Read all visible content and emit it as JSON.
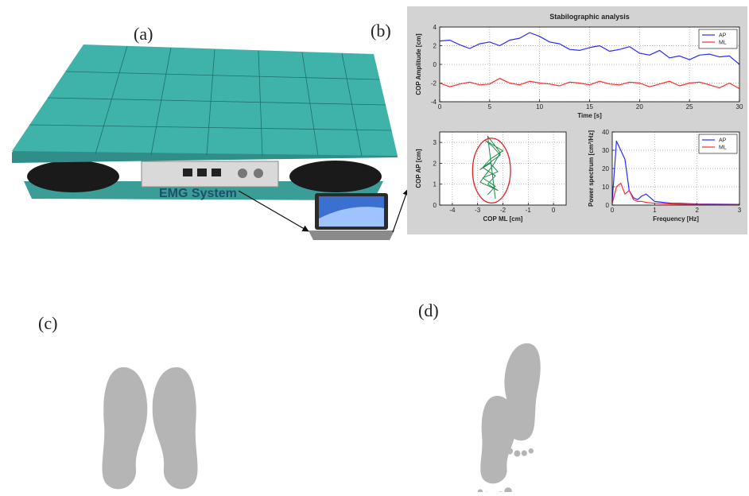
{
  "panel_labels": [
    "(a)",
    "(b)",
    "(c)",
    "(d)"
  ],
  "platform_brand": "EMG System",
  "chart_data": [
    {
      "type": "line",
      "title": "Stabilographic analysis",
      "x_label": "Time [s]",
      "y_label": "COP Amplitude [cm]",
      "x": [
        0,
        1,
        2,
        3,
        4,
        5,
        6,
        7,
        8,
        9,
        10,
        11,
        12,
        13,
        14,
        15,
        16,
        17,
        18,
        19,
        20,
        21,
        22,
        23,
        24,
        25,
        26,
        27,
        28,
        29,
        30
      ],
      "series": [
        {
          "name": "AP",
          "color": "#2a2aff",
          "values": [
            2.5,
            2.6,
            2.1,
            1.7,
            2.2,
            2.4,
            2.0,
            2.6,
            2.8,
            3.4,
            3.0,
            2.4,
            2.2,
            1.6,
            1.5,
            1.8,
            2.0,
            1.4,
            1.6,
            1.9,
            1.2,
            1.0,
            1.5,
            0.7,
            0.9,
            0.5,
            1.0,
            1.1,
            0.8,
            0.9,
            0.0
          ]
        },
        {
          "name": "ML",
          "color": "#ff2a2a",
          "values": [
            -2.0,
            -2.4,
            -2.1,
            -1.9,
            -2.2,
            -2.1,
            -1.5,
            -2.0,
            -2.2,
            -1.8,
            -2.0,
            -2.1,
            -2.3,
            -1.9,
            -2.0,
            -2.2,
            -1.8,
            -2.1,
            -2.2,
            -1.9,
            -2.0,
            -2.4,
            -2.1,
            -1.8,
            -2.3,
            -2.0,
            -1.9,
            -2.2,
            -2.5,
            -2.0,
            -2.6
          ]
        }
      ],
      "xlim": [
        0,
        30
      ],
      "xticks": [
        0,
        5,
        10,
        15,
        20,
        25,
        30
      ],
      "ylim": [
        -4,
        4
      ],
      "yticks": [
        -4,
        -2,
        0,
        2,
        4
      ],
      "grid": true,
      "legend": "upper right"
    },
    {
      "type": "scatter",
      "x_label": "COP ML [cm]",
      "y_label": "COP AP [cm]",
      "x": [
        -2.6,
        -2.3,
        -2.8,
        -2.2,
        -2.5,
        -2.9,
        -2.1,
        -2.4,
        -2.7,
        -2.0,
        -2.5,
        -2.8,
        -2.3,
        -2.6,
        -2.2,
        -2.9,
        -2.4,
        -2.1,
        -2.6,
        -2.3
      ],
      "values": [
        0.5,
        0.9,
        1.3,
        1.6,
        2.0,
        1.7,
        2.4,
        2.8,
        3.1,
        2.6,
        2.2,
        1.8,
        1.4,
        1.0,
        0.7,
        1.1,
        1.9,
        2.5,
        3.3,
        0.3
      ],
      "color": "#1e8a4a",
      "ellipse": {
        "cx": -2.45,
        "cy": 1.65,
        "rx": 0.75,
        "ry": 1.55,
        "color": "#e02020"
      },
      "xlim": [
        -4.5,
        0.5
      ],
      "xticks": [
        -4,
        -3,
        -2,
        -1,
        0
      ],
      "ylim": [
        0,
        3.5
      ],
      "yticks": [
        0,
        1,
        2,
        3
      ],
      "grid": true
    },
    {
      "type": "line",
      "x_label": "Frequency [Hz]",
      "y_label": "Power spectrum [cm²/Hz]",
      "x": [
        0,
        0.1,
        0.2,
        0.3,
        0.4,
        0.5,
        0.6,
        0.7,
        0.8,
        0.9,
        1.0,
        1.2,
        1.4,
        1.6,
        1.8,
        2.0,
        2.5,
        3.0
      ],
      "series": [
        {
          "name": "AP",
          "color": "#2a2aff",
          "values": [
            2,
            35,
            30,
            25,
            8,
            4,
            3,
            5,
            6,
            4,
            2,
            1.5,
            1,
            1,
            0.8,
            0.6,
            0.5,
            0.4
          ]
        },
        {
          "name": "ML",
          "color": "#ff2a2a",
          "values": [
            1,
            10,
            12,
            6,
            8,
            3,
            2,
            2,
            1.5,
            1.2,
            1,
            0.8,
            0.6,
            0.5,
            0.5,
            0.4,
            0.3,
            0.3
          ]
        }
      ],
      "xlim": [
        0,
        3
      ],
      "xticks": [
        0,
        1,
        2,
        3
      ],
      "ylim": [
        0,
        40
      ],
      "yticks": [
        0,
        10,
        20,
        30,
        40
      ],
      "grid": true,
      "legend": "upper right"
    }
  ]
}
